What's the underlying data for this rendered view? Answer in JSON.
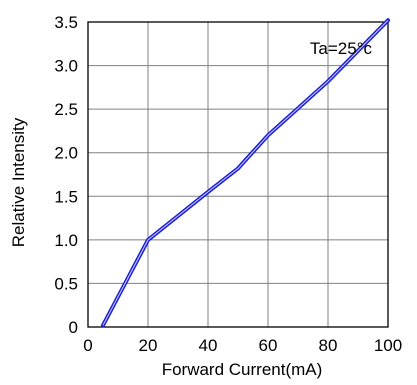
{
  "chart_data": {
    "type": "line",
    "title": "",
    "xlabel": "Forward Current(mA)",
    "ylabel": "Relative Intensity",
    "xlim": [
      0,
      100
    ],
    "ylim": [
      0,
      3.5
    ],
    "x_ticks": [
      0,
      20,
      40,
      60,
      80,
      100
    ],
    "y_ticks": [
      0,
      0.5,
      1.0,
      1.5,
      2.0,
      2.5,
      3.0,
      3.5
    ],
    "x_tick_labels": [
      "0",
      "20",
      "40",
      "60",
      "80",
      "100"
    ],
    "y_tick_labels": [
      "0",
      "0.5",
      "1.0",
      "1.5",
      "2.0",
      "2.5",
      "3.0",
      "3.5"
    ],
    "grid": true,
    "annotation": "Ta=25°c",
    "series": [
      {
        "color": "#1f1fd6",
        "x": [
          5,
          20,
          40,
          50,
          60,
          80,
          100
        ],
        "y": [
          0.02,
          1.0,
          1.55,
          1.82,
          2.2,
          2.82,
          3.52
        ]
      }
    ]
  }
}
